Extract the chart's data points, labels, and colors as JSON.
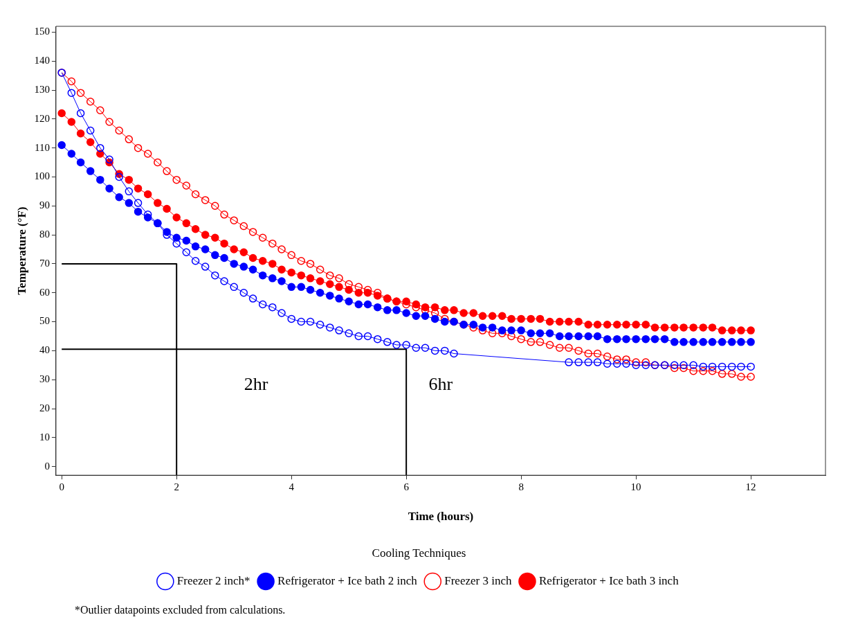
{
  "chart_data": {
    "type": "line",
    "xlabel": "Time (hours)",
    "ylabel": "Temperature (°F)",
    "legend_title": "Cooling Techniques",
    "legend": "bottom",
    "grid": false,
    "marker": "circle",
    "xlim": [
      -0.1,
      13.3
    ],
    "xticks": [
      0,
      2,
      4,
      6,
      8,
      10,
      12
    ],
    "ylim": [
      -3,
      152
    ],
    "yticks": [
      0,
      10,
      20,
      30,
      40,
      50,
      60,
      70,
      80,
      90,
      100,
      110,
      120,
      130,
      140,
      150
    ],
    "x": [
      0,
      0.17,
      0.33,
      0.5,
      0.67,
      0.83,
      1,
      1.17,
      1.33,
      1.5,
      1.67,
      1.83,
      2,
      2.17,
      2.33,
      2.5,
      2.67,
      2.83,
      3,
      3.17,
      3.33,
      3.5,
      3.67,
      3.83,
      4,
      4.17,
      4.33,
      4.5,
      4.67,
      4.83,
      5,
      5.17,
      5.33,
      5.5,
      5.67,
      5.83,
      6,
      6.17,
      6.33,
      6.5,
      6.67,
      6.83,
      7,
      7.17,
      7.33,
      7.5,
      7.67,
      7.83,
      8,
      8.17,
      8.33,
      8.5,
      8.67,
      8.83,
      9,
      9.17,
      9.33,
      9.5,
      9.67,
      9.83,
      10,
      10.17,
      10.33,
      10.5,
      10.67,
      10.83,
      11,
      11.17,
      11.33,
      11.5,
      11.67,
      11.83,
      12
    ],
    "series": [
      {
        "name": "Freezer 2 inch*",
        "color": "#0000ff",
        "x": [
          0,
          0.17,
          0.33,
          0.5,
          0.67,
          0.83,
          1,
          1.17,
          1.33,
          1.5,
          1.67,
          1.83,
          2,
          2.17,
          2.33,
          2.5,
          2.67,
          2.83,
          3,
          3.17,
          3.33,
          3.5,
          3.67,
          3.83,
          4,
          4.17,
          4.33,
          4.5,
          4.67,
          4.83,
          5,
          5.17,
          5.33,
          5.5,
          5.67,
          5.83,
          6,
          6.17,
          6.33,
          6.5,
          6.67,
          6.83,
          8.83,
          9,
          9.17,
          9.33,
          9.5,
          9.67,
          9.83,
          10,
          10.17,
          10.33,
          10.5,
          10.67,
          10.83,
          11,
          11.17,
          11.33,
          11.5,
          11.67,
          11.83,
          12
        ],
        "values": [
          136,
          129,
          122,
          116,
          110,
          106,
          100,
          95,
          91,
          87,
          84,
          80,
          77,
          74,
          71,
          69,
          66,
          64,
          62,
          60,
          58,
          56,
          55,
          53,
          51,
          50,
          50,
          49,
          48,
          47,
          46,
          45,
          45,
          44,
          43,
          42,
          42,
          41,
          41,
          40,
          40,
          39,
          36,
          36,
          36,
          36,
          35.5,
          35.5,
          35.5,
          35,
          35,
          35,
          35,
          35,
          35,
          35,
          34.5,
          34.5,
          34.5,
          34.5,
          34.5,
          34.5
        ]
      },
      {
        "name": "Refrigerator + Ice bath 2 inch",
        "color": "#0000ff",
        "values": [
          111,
          108,
          105,
          102,
          99,
          96,
          93,
          91,
          88,
          86,
          84,
          81,
          79,
          78,
          76,
          75,
          73,
          72,
          70,
          69,
          68,
          66,
          65,
          64,
          62,
          62,
          61,
          60,
          59,
          58,
          57,
          56,
          56,
          55,
          54,
          54,
          53,
          52,
          52,
          51,
          50,
          50,
          49,
          49,
          48,
          48,
          47,
          47,
          47,
          46,
          46,
          46,
          45,
          45,
          45,
          45,
          45,
          44,
          44,
          44,
          44,
          44,
          44,
          44,
          43,
          43,
          43,
          43,
          43,
          43,
          43,
          43,
          43
        ]
      },
      {
        "name": "Freezer 3 inch",
        "color": "#ff0000",
        "values": [
          136,
          133,
          129,
          126,
          123,
          119,
          116,
          113,
          110,
          108,
          105,
          102,
          99,
          97,
          94,
          92,
          90,
          87,
          85,
          83,
          81,
          79,
          77,
          75,
          73,
          71,
          70,
          68,
          66,
          65,
          63,
          62,
          61,
          60,
          58,
          57,
          56,
          55,
          54,
          53,
          51,
          50,
          49,
          48,
          47,
          46,
          46,
          45,
          44,
          43,
          43,
          42,
          41,
          41,
          40,
          39,
          39,
          38,
          37,
          37,
          36,
          36,
          35,
          35,
          34,
          34,
          33,
          33,
          33,
          32,
          32,
          31,
          31
        ]
      },
      {
        "name": "Refrigerator + Ice bath 3 inch",
        "color": "#ff0000",
        "values": [
          122,
          119,
          115,
          112,
          108,
          105,
          101,
          99,
          96,
          94,
          91,
          89,
          86,
          84,
          82,
          80,
          79,
          77,
          75,
          74,
          72,
          71,
          70,
          68,
          67,
          66,
          65,
          64,
          63,
          62,
          61,
          60,
          60,
          59,
          58,
          57,
          57,
          56,
          55,
          55,
          54,
          54,
          53,
          53,
          52,
          52,
          52,
          51,
          51,
          51,
          51,
          50,
          50,
          50,
          50,
          49,
          49,
          49,
          49,
          49,
          49,
          49,
          48,
          48,
          48,
          48,
          48,
          48,
          48,
          47,
          47,
          47,
          47
        ]
      },
      {
        "color": "#000000",
        "marker": "none",
        "x": [
          0,
          2,
          2
        ],
        "values": [
          70,
          70,
          -3
        ]
      },
      {
        "color": "#000000",
        "marker": "none",
        "x": [
          0,
          6,
          6
        ],
        "values": [
          40.5,
          40.5,
          -3
        ]
      }
    ],
    "annotations": [
      "2hr",
      "6hr",
      "*Outlier datapoints excluded from calculations."
    ]
  }
}
